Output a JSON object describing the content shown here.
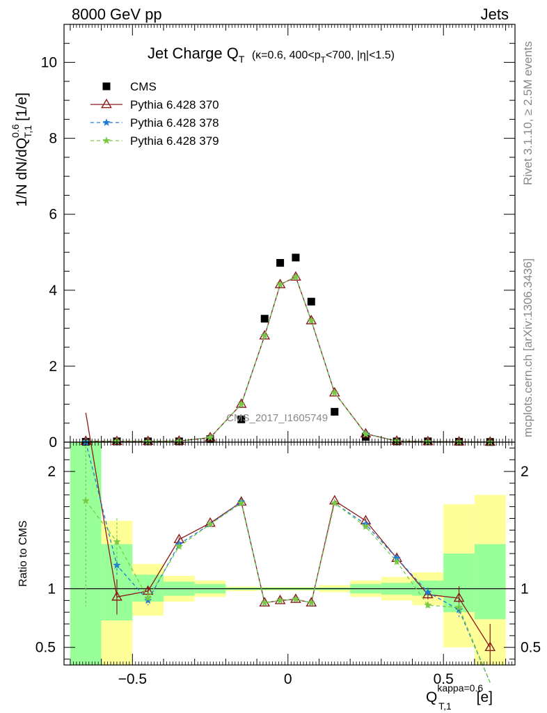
{
  "header": {
    "left": "8000 GeV pp",
    "right": "Jets"
  },
  "side": {
    "top": "Rivet 3.1.10, ≥ 2.5M events",
    "bottom": "mcplots.cern.ch [arXiv:1306.3436]"
  },
  "watermark": "CMS_2017_I1605749",
  "colors": {
    "cms": "#000000",
    "p370": "#8b1a1a",
    "p378": "#1e7ad6",
    "p379": "#7ac943",
    "band_green": "#99ff99",
    "band_yellow": "#ffff99"
  },
  "chart_data": [
    {
      "type": "scatter",
      "title_main": "Jet Charge Q",
      "title_sub": "T",
      "title_rest": " (κ=0.6, 400<p",
      "title_rest_sub": "T",
      "title_tail": "<700, |η|<1.5)",
      "ylabel": "1/N dN/dQ",
      "ylabel_sup": "0.6",
      "ylabel_sub": "T,1",
      "ylabel_unit": " [1/e]",
      "xlim": [
        -0.72,
        0.73
      ],
      "ylim": [
        0,
        11
      ],
      "yticks": [
        0,
        2,
        4,
        6,
        8,
        10
      ],
      "ytick_labels": [
        "0",
        "2",
        "4",
        "6",
        "8",
        "10"
      ],
      "x": [
        -0.65,
        -0.55,
        -0.45,
        -0.35,
        -0.25,
        -0.15,
        -0.075,
        -0.025,
        0.025,
        0.075,
        0.15,
        0.25,
        0.35,
        0.45,
        0.55,
        0.65
      ],
      "series": [
        {
          "name": "CMS",
          "values": [
            0.01,
            0.02,
            0.02,
            0.02,
            0.08,
            0.6,
            3.25,
            4.72,
            4.86,
            3.7,
            0.8,
            0.14,
            0.02,
            0.02,
            0.01,
            0.005
          ]
        },
        {
          "name": "Pythia 6.428 370",
          "values": [
            0.025,
            0.02,
            0.02,
            0.03,
            0.12,
            1.0,
            2.8,
            4.15,
            4.35,
            3.2,
            1.3,
            0.22,
            0.03,
            0.015,
            0.01,
            0.003
          ]
        },
        {
          "name": "Pythia 6.428 378",
          "values": [
            0.02,
            0.025,
            0.02,
            0.03,
            0.12,
            1.0,
            2.8,
            4.15,
            4.35,
            3.2,
            1.3,
            0.22,
            0.03,
            0.015,
            0.008,
            0.002
          ]
        },
        {
          "name": "Pythia 6.428 379",
          "values": [
            0.018,
            0.028,
            0.018,
            0.028,
            0.12,
            1.0,
            2.8,
            4.15,
            4.35,
            3.2,
            1.3,
            0.21,
            0.028,
            0.014,
            0.008,
            0.002
          ]
        }
      ]
    },
    {
      "type": "line",
      "ylabel": "Ratio to CMS",
      "xlabel": "Q",
      "xlabel_sup": "kappa=0.6",
      "xlabel_sub": "T,1",
      "xlabel_unit": " [e]",
      "xlim": [
        -0.72,
        0.73
      ],
      "ylim": [
        0.35,
        2.25
      ],
      "xticks": [
        -0.5,
        0,
        0.5
      ],
      "xtick_labels": [
        "−0.5",
        "0",
        "0.5"
      ],
      "yticks": [
        0.5,
        1,
        2
      ],
      "ytick_labels": [
        "0.5",
        "1",
        "2"
      ],
      "bins": [
        {
          "lo": -0.7,
          "hi": -0.6,
          "g": [
            0.35,
            2.25
          ],
          "y": [
            0.35,
            2.25
          ]
        },
        {
          "lo": -0.6,
          "hi": -0.5,
          "g": [
            0.73,
            1.38
          ],
          "y": [
            0.35,
            1.58
          ]
        },
        {
          "lo": -0.5,
          "hi": -0.4,
          "g": [
            0.89,
            1.12
          ],
          "y": [
            0.77,
            1.21
          ]
        },
        {
          "lo": -0.4,
          "hi": -0.3,
          "g": [
            0.94,
            1.06
          ],
          "y": [
            0.89,
            1.11
          ]
        },
        {
          "lo": -0.3,
          "hi": -0.2,
          "g": [
            0.96,
            1.04
          ],
          "y": [
            0.93,
            1.07
          ]
        },
        {
          "lo": -0.2,
          "hi": -0.1,
          "g": [
            0.99,
            1.01
          ],
          "y": [
            0.98,
            1.02
          ]
        },
        {
          "lo": -0.1,
          "hi": 0.1,
          "g": [
            0.99,
            1.01
          ],
          "y": [
            0.985,
            1.015
          ]
        },
        {
          "lo": 0.1,
          "hi": 0.2,
          "g": [
            0.99,
            1.01
          ],
          "y": [
            0.97,
            1.03
          ]
        },
        {
          "lo": 0.2,
          "hi": 0.3,
          "g": [
            0.96,
            1.04
          ],
          "y": [
            0.93,
            1.07
          ]
        },
        {
          "lo": 0.3,
          "hi": 0.4,
          "g": [
            0.95,
            1.05
          ],
          "y": [
            0.9,
            1.1
          ]
        },
        {
          "lo": 0.4,
          "hi": 0.5,
          "g": [
            0.94,
            1.07
          ],
          "y": [
            0.86,
            1.14
          ]
        },
        {
          "lo": 0.5,
          "hi": 0.6,
          "g": [
            0.8,
            1.3
          ],
          "y": [
            0.5,
            1.72
          ]
        },
        {
          "lo": 0.6,
          "hi": 0.7,
          "g": [
            0.74,
            1.38
          ],
          "y": [
            0.35,
            1.8
          ]
        }
      ],
      "x": [
        -0.65,
        -0.55,
        -0.45,
        -0.35,
        -0.25,
        -0.15,
        -0.075,
        -0.025,
        0.025,
        0.075,
        0.15,
        0.25,
        0.35,
        0.45,
        0.55,
        0.65
      ],
      "series": [
        {
          "name": "Pythia 6.428 370",
          "values": [
            2.5,
            0.93,
            0.98,
            1.42,
            1.56,
            1.74,
            0.88,
            0.9,
            0.91,
            0.88,
            1.75,
            1.58,
            1.26,
            0.95,
            0.92,
            0.5
          ],
          "err": [
            null,
            0.15,
            0.04,
            0.02,
            0.01,
            0.01,
            0.005,
            0.005,
            0.005,
            0.005,
            0.01,
            0.02,
            0.03,
            0.04,
            0.1,
            0.2
          ]
        },
        {
          "name": "Pythia 6.428 378",
          "values": [
            2.25,
            1.2,
            0.9,
            1.38,
            1.55,
            1.74,
            0.88,
            0.9,
            0.91,
            0.88,
            1.73,
            1.55,
            1.26,
            0.97,
            0.82,
            0.2
          ],
          "err": [
            null,
            0.08,
            0.04,
            0.02,
            0.01,
            0.01,
            0.005,
            0.005,
            0.005,
            0.005,
            0.01,
            0.02,
            0.03,
            0.04,
            0.06,
            null
          ]
        },
        {
          "name": "Pythia 6.428 379",
          "values": [
            1.75,
            1.4,
            0.92,
            1.36,
            1.55,
            1.73,
            0.88,
            0.9,
            0.91,
            0.88,
            1.73,
            1.53,
            1.23,
            0.86,
            0.84,
            0.2
          ],
          "err": [
            0.9,
            0.2,
            0.04,
            0.02,
            0.01,
            0.01,
            0.005,
            0.005,
            0.005,
            0.005,
            0.01,
            0.02,
            0.03,
            0.03,
            0.04,
            null
          ]
        }
      ]
    }
  ]
}
